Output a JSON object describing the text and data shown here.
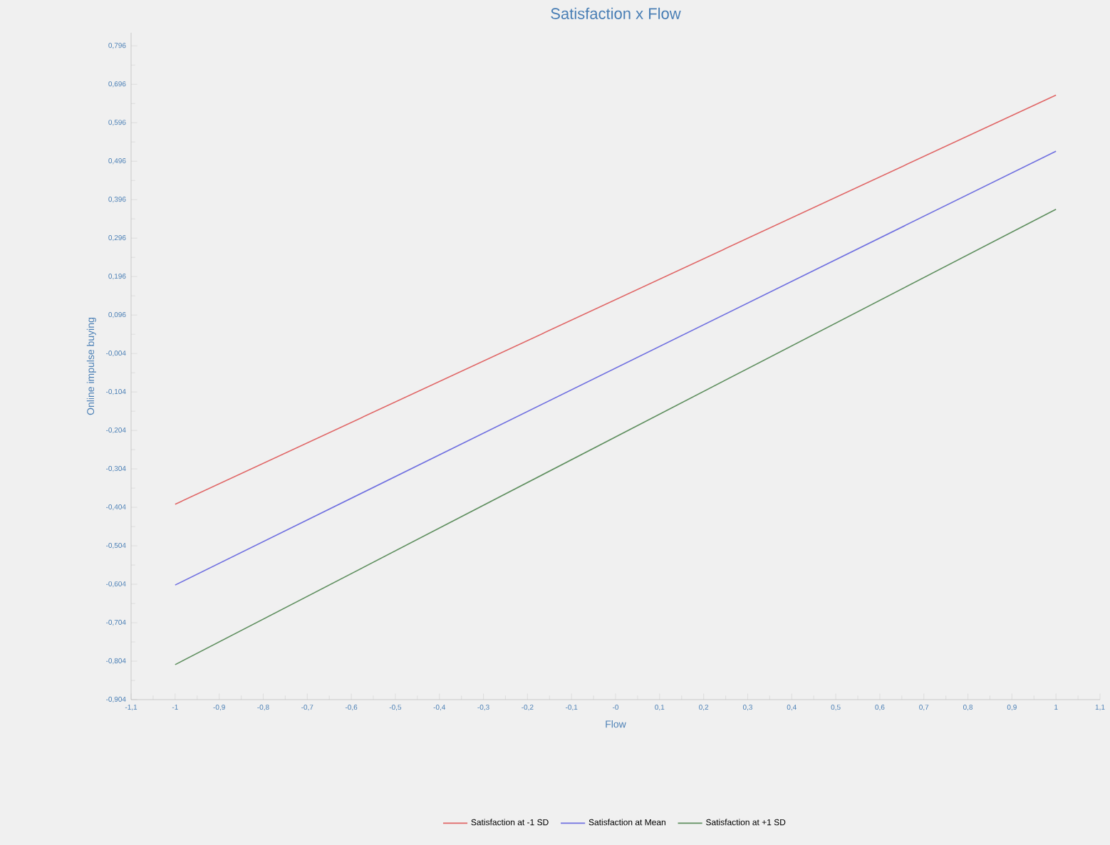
{
  "chart_data": {
    "type": "line",
    "title": "Satisfaction x Flow",
    "xlabel": "Flow",
    "ylabel": "Online impulse buying",
    "x": [
      -1,
      1
    ],
    "series": [
      {
        "name": "Satisfaction at -1 SD",
        "color": "#e06666",
        "values": [
          -0.396,
          0.668
        ]
      },
      {
        "name": "Satisfaction at Mean",
        "color": "#7070e0",
        "values": [
          -0.606,
          0.522
        ]
      },
      {
        "name": "Satisfaction at +1 SD",
        "color": "#5f8f5f",
        "values": [
          -0.813,
          0.371
        ]
      }
    ],
    "xlim": [
      -1.1,
      1.1
    ],
    "xticks": [
      {
        "value": -1.1,
        "label": "-1,1"
      },
      {
        "value": -1,
        "label": "-1"
      },
      {
        "value": -0.9,
        "label": "-0,9"
      },
      {
        "value": -0.8,
        "label": "-0,8"
      },
      {
        "value": -0.7,
        "label": "-0,7"
      },
      {
        "value": -0.6,
        "label": "-0,6"
      },
      {
        "value": -0.5,
        "label": "-0,5"
      },
      {
        "value": -0.4,
        "label": "-0,4"
      },
      {
        "value": -0.3,
        "label": "-0,3"
      },
      {
        "value": -0.2,
        "label": "-0,2"
      },
      {
        "value": -0.1,
        "label": "-0,1"
      },
      {
        "value": 0,
        "label": "-0"
      },
      {
        "value": 0.1,
        "label": "0,1"
      },
      {
        "value": 0.2,
        "label": "0,2"
      },
      {
        "value": 0.3,
        "label": "0,3"
      },
      {
        "value": 0.4,
        "label": "0,4"
      },
      {
        "value": 0.5,
        "label": "0,5"
      },
      {
        "value": 0.6,
        "label": "0,6"
      },
      {
        "value": 0.7,
        "label": "0,7"
      },
      {
        "value": 0.8,
        "label": "0,8"
      },
      {
        "value": 0.9,
        "label": "0,9"
      },
      {
        "value": 1,
        "label": "1"
      },
      {
        "value": 1.1,
        "label": "1,1"
      }
    ],
    "ylim": [
      -0.904,
      0.83
    ],
    "yticks": [
      {
        "value": -0.904,
        "label": "-0,904"
      },
      {
        "value": -0.804,
        "label": "-0,804"
      },
      {
        "value": -0.704,
        "label": "-0,704"
      },
      {
        "value": -0.604,
        "label": "-0,604"
      },
      {
        "value": -0.504,
        "label": "-0,504"
      },
      {
        "value": -0.404,
        "label": "-0,404"
      },
      {
        "value": -0.304,
        "label": "-0,304"
      },
      {
        "value": -0.204,
        "label": "-0,204"
      },
      {
        "value": -0.104,
        "label": "-0,104"
      },
      {
        "value": -0.004,
        "label": "-0,004"
      },
      {
        "value": 0.096,
        "label": "0,096"
      },
      {
        "value": 0.196,
        "label": "0,196"
      },
      {
        "value": 0.296,
        "label": "0,296"
      },
      {
        "value": 0.396,
        "label": "0,396"
      },
      {
        "value": 0.496,
        "label": "0,496"
      },
      {
        "value": 0.596,
        "label": "0,596"
      },
      {
        "value": 0.696,
        "label": "0,696"
      },
      {
        "value": 0.796,
        "label": "0,796"
      }
    ],
    "legend": "bottom",
    "marker": "none",
    "line_style": "solid"
  }
}
